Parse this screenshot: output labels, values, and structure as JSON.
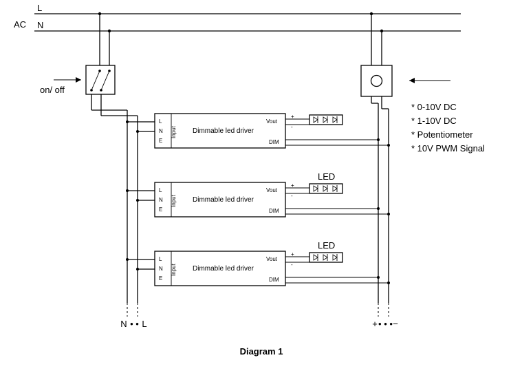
{
  "diagram": {
    "title": "Diagram 1",
    "ac_label": "AC",
    "line_L": "L",
    "line_N": "N",
    "switch_label": "on/ off",
    "dimmer_arrow_label": "",
    "dimmer_notes": [
      "* 0-10V DC",
      "* 1-10V DC",
      "* Potentiometer",
      "* 10V PWM Signal"
    ],
    "drivers": [
      {
        "label": "Dimmable led driver",
        "in_L": "L",
        "in_N": "N",
        "in_E": "E",
        "in_side": "Input",
        "vout": "Vout",
        "dim": "DIM",
        "plus": "+",
        "minus": "-",
        "led_label": ""
      },
      {
        "label": "Dimmable led driver",
        "in_L": "L",
        "in_N": "N",
        "in_E": "E",
        "in_side": "Input",
        "vout": "Vout",
        "dim": "DIM",
        "plus": "+",
        "minus": "-",
        "led_label": "LED"
      },
      {
        "label": "Dimmable led driver",
        "in_L": "L",
        "in_N": "N",
        "in_E": "E",
        "in_side": "Input",
        "vout": "Vout",
        "dim": "DIM",
        "plus": "+",
        "minus": "-",
        "led_label": "LED"
      }
    ],
    "bottom_N": "N",
    "bottom_L": "L",
    "bottom_plus": "+",
    "bottom_minus": "−",
    "bottom_dots": "• • •",
    "colors": {
      "stroke": "#000000",
      "bg": "#ffffff"
    }
  }
}
